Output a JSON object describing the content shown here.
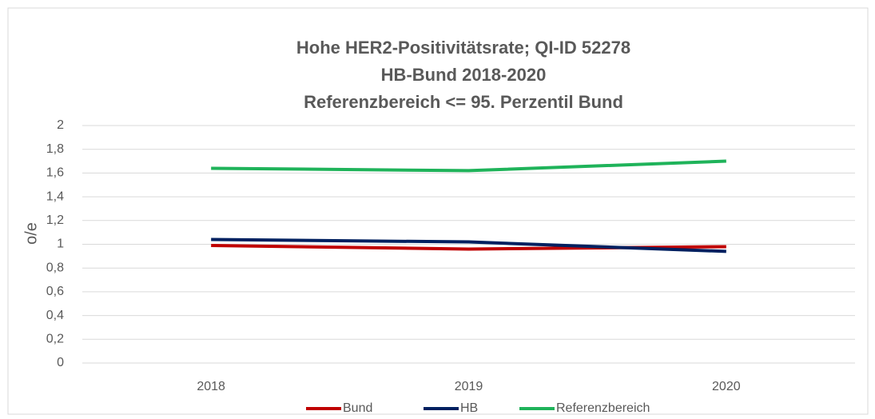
{
  "chart_data": {
    "type": "line",
    "title": [
      "Hohe HER2-Positivitätsrate; QI-ID 52278",
      "HB-Bund 2018-2020",
      "Referenzbereich <= 95. Perzentil Bund"
    ],
    "y_label": "o/e",
    "categories": [
      "2018",
      "2019",
      "2020"
    ],
    "series": [
      {
        "name": "Bund",
        "color": "#c00000",
        "values": [
          0.99,
          0.96,
          0.98
        ]
      },
      {
        "name": "HB",
        "color": "#002060",
        "values": [
          1.04,
          1.02,
          0.94
        ]
      },
      {
        "name": "Referenzbereich",
        "color": "#1fb35a",
        "values": [
          1.64,
          1.62,
          1.7
        ]
      }
    ],
    "ylim": [
      0,
      2
    ],
    "yticks": [
      0,
      {
        "value": 0.2,
        "label": "0,2"
      },
      {
        "value": 0.4,
        "label": "0,4"
      },
      {
        "value": 0.6,
        "label": "0,6"
      },
      {
        "value": 0.8,
        "label": "0,8"
      },
      1,
      {
        "value": 1.2,
        "label": "1,2"
      },
      {
        "value": 1.4,
        "label": "1,4"
      },
      {
        "value": 1.6,
        "label": "1,6"
      },
      {
        "value": 1.8,
        "label": "1,8"
      },
      2
    ],
    "grid": true,
    "legend": "bottom"
  }
}
